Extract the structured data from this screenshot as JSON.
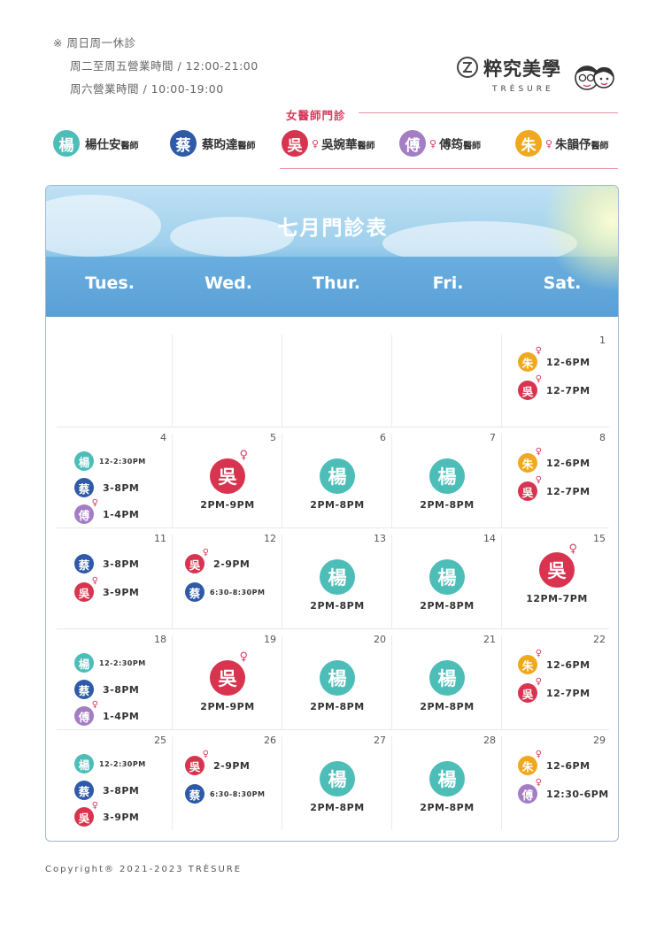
{
  "notes": {
    "line1": "※ 周日周一休診",
    "line2": "周二至周五營業時間 / 12:00-21:00",
    "line3": "周六營業時間 / 10:00-19:00"
  },
  "logo": {
    "brand": "粹究美學",
    "sub": "TRÈSURE"
  },
  "legend": {
    "female_title": "女醫師門診",
    "doctors": [
      {
        "char": "楊",
        "name": "楊仕安",
        "title": "醫師",
        "color": "#4dbdb8",
        "female": false
      },
      {
        "char": "蔡",
        "name": "蔡昀達",
        "title": "醫師",
        "color": "#2e5aa8",
        "female": false
      },
      {
        "char": "吳",
        "name": "吳婉華",
        "title": "醫師",
        "color": "#d8344f",
        "female": true
      },
      {
        "char": "傅",
        "name": "傅筠",
        "title": "醫師",
        "color": "#a47ec4",
        "female": true
      },
      {
        "char": "朱",
        "name": "朱韻伃",
        "title": "醫師",
        "color": "#f0a91e",
        "female": true
      }
    ]
  },
  "calendar": {
    "title": "七月門診表",
    "days": [
      "Tues.",
      "Wed.",
      "Thur.",
      "Fri.",
      "Sat."
    ],
    "female_symbol": "♀",
    "weeks": [
      [
        {
          "date": "",
          "items": []
        },
        {
          "date": "",
          "items": []
        },
        {
          "date": "",
          "items": []
        },
        {
          "date": "",
          "items": []
        },
        {
          "date": "1",
          "items": [
            {
              "doc": "朱",
              "time": "12-6PM"
            },
            {
              "doc": "吳",
              "time": "12-7PM"
            }
          ]
        }
      ],
      [
        {
          "date": "4",
          "items": [
            {
              "doc": "楊",
              "time": "12-2:30PM",
              "small": true
            },
            {
              "doc": "蔡",
              "time": "3-8PM"
            },
            {
              "doc": "傅",
              "time": "1-4PM"
            }
          ]
        },
        {
          "date": "5",
          "big": {
            "doc": "吳",
            "time": "2PM-9PM"
          }
        },
        {
          "date": "6",
          "big": {
            "doc": "楊",
            "time": "2PM-8PM"
          }
        },
        {
          "date": "7",
          "big": {
            "doc": "楊",
            "time": "2PM-8PM"
          }
        },
        {
          "date": "8",
          "items": [
            {
              "doc": "朱",
              "time": "12-6PM"
            },
            {
              "doc": "吳",
              "time": "12-7PM"
            }
          ]
        }
      ],
      [
        {
          "date": "11",
          "items": [
            {
              "doc": "蔡",
              "time": "3-8PM"
            },
            {
              "doc": "吳",
              "time": "3-9PM"
            }
          ]
        },
        {
          "date": "12",
          "items": [
            {
              "doc": "吳",
              "time": "2-9PM"
            },
            {
              "doc": "蔡",
              "time": "6:30-8:30PM",
              "small": true
            }
          ]
        },
        {
          "date": "13",
          "big": {
            "doc": "楊",
            "time": "2PM-8PM"
          }
        },
        {
          "date": "14",
          "big": {
            "doc": "楊",
            "time": "2PM-8PM"
          }
        },
        {
          "date": "15",
          "big": {
            "doc": "吳",
            "time": "12PM-7PM"
          }
        }
      ],
      [
        {
          "date": "18",
          "items": [
            {
              "doc": "楊",
              "time": "12-2:30PM",
              "small": true
            },
            {
              "doc": "蔡",
              "time": "3-8PM"
            },
            {
              "doc": "傅",
              "time": "1-4PM"
            }
          ]
        },
        {
          "date": "19",
          "big": {
            "doc": "吳",
            "time": "2PM-9PM"
          }
        },
        {
          "date": "20",
          "big": {
            "doc": "楊",
            "time": "2PM-8PM"
          }
        },
        {
          "date": "21",
          "big": {
            "doc": "楊",
            "time": "2PM-8PM"
          }
        },
        {
          "date": "22",
          "items": [
            {
              "doc": "朱",
              "time": "12-6PM"
            },
            {
              "doc": "吳",
              "time": "12-7PM"
            }
          ]
        }
      ],
      [
        {
          "date": "25",
          "items": [
            {
              "doc": "楊",
              "time": "12-2:30PM",
              "small": true
            },
            {
              "doc": "蔡",
              "time": "3-8PM"
            },
            {
              "doc": "吳",
              "time": "3-9PM"
            }
          ]
        },
        {
          "date": "26",
          "items": [
            {
              "doc": "吳",
              "time": "2-9PM"
            },
            {
              "doc": "蔡",
              "time": "6:30-8:30PM",
              "small": true
            }
          ]
        },
        {
          "date": "27",
          "big": {
            "doc": "楊",
            "time": "2PM-8PM"
          }
        },
        {
          "date": "28",
          "big": {
            "doc": "楊",
            "time": "2PM-8PM"
          }
        },
        {
          "date": "29",
          "items": [
            {
              "doc": "朱",
              "time": "12-6PM"
            },
            {
              "doc": "傅",
              "time": "12:30-6PM"
            }
          ]
        }
      ]
    ]
  },
  "copyright": "Copyright® 2021-2023 TRÈSURE"
}
